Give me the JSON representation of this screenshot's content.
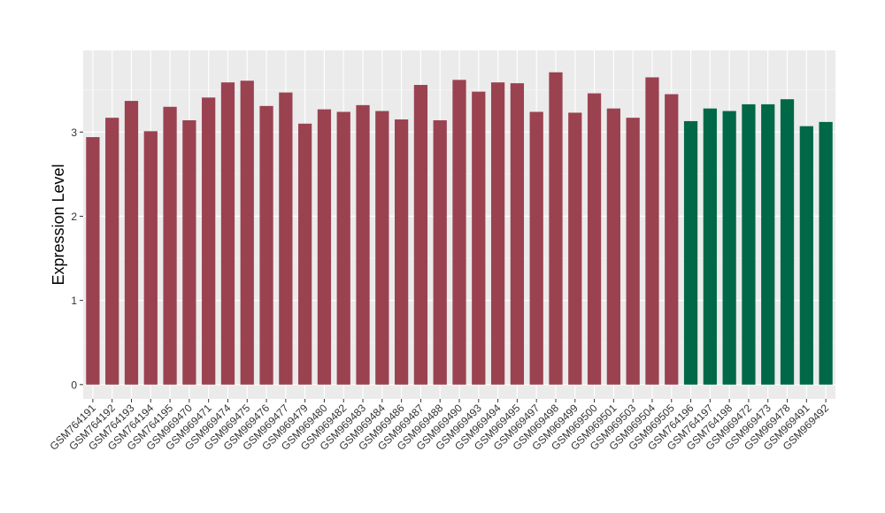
{
  "chart_data": {
    "type": "bar",
    "title": "",
    "xlabel": "",
    "ylabel": "Expression Level",
    "ylim": [
      -0.17,
      3.97
    ],
    "yticks": [
      0,
      1,
      2,
      3
    ],
    "grid": true,
    "categories": [
      "GSM764191",
      "GSM764192",
      "GSM764193",
      "GSM764194",
      "GSM764195",
      "GSM969470",
      "GSM969471",
      "GSM969474",
      "GSM969475",
      "GSM969476",
      "GSM969477",
      "GSM969479",
      "GSM969480",
      "GSM969482",
      "GSM969483",
      "GSM969484",
      "GSM969486",
      "GSM969487",
      "GSM969488",
      "GSM969490",
      "GSM969493",
      "GSM969494",
      "GSM969495",
      "GSM969497",
      "GSM969498",
      "GSM969499",
      "GSM969500",
      "GSM969501",
      "GSM969503",
      "GSM969504",
      "GSM969505",
      "GSM764196",
      "GSM764197",
      "GSM764198",
      "GSM969472",
      "GSM969473",
      "GSM969478",
      "GSM969491",
      "GSM969492"
    ],
    "values": [
      2.94,
      3.17,
      3.37,
      3.01,
      3.3,
      3.14,
      3.41,
      3.59,
      3.61,
      3.31,
      3.47,
      3.1,
      3.27,
      3.24,
      3.32,
      3.25,
      3.15,
      3.56,
      3.14,
      3.62,
      3.48,
      3.59,
      3.58,
      3.24,
      3.71,
      3.23,
      3.46,
      3.28,
      3.17,
      3.65,
      3.45,
      3.13,
      3.28,
      3.25,
      3.33,
      3.33,
      3.39,
      3.07,
      3.12
    ],
    "bar_colors": [
      "#9a4250",
      "#9a4250",
      "#9a4250",
      "#9a4250",
      "#9a4250",
      "#9a4250",
      "#9a4250",
      "#9a4250",
      "#9a4250",
      "#9a4250",
      "#9a4250",
      "#9a4250",
      "#9a4250",
      "#9a4250",
      "#9a4250",
      "#9a4250",
      "#9a4250",
      "#9a4250",
      "#9a4250",
      "#9a4250",
      "#9a4250",
      "#9a4250",
      "#9a4250",
      "#9a4250",
      "#9a4250",
      "#9a4250",
      "#9a4250",
      "#9a4250",
      "#9a4250",
      "#9a4250",
      "#9a4250",
      "#006846",
      "#006846",
      "#006846",
      "#006846",
      "#006846",
      "#006846",
      "#006846",
      "#006846"
    ],
    "colors": {
      "panel_background": "#ebebeb",
      "grid_major": "#ffffff",
      "grid_minor": "#f5f5f5",
      "tick": "#333333"
    }
  }
}
